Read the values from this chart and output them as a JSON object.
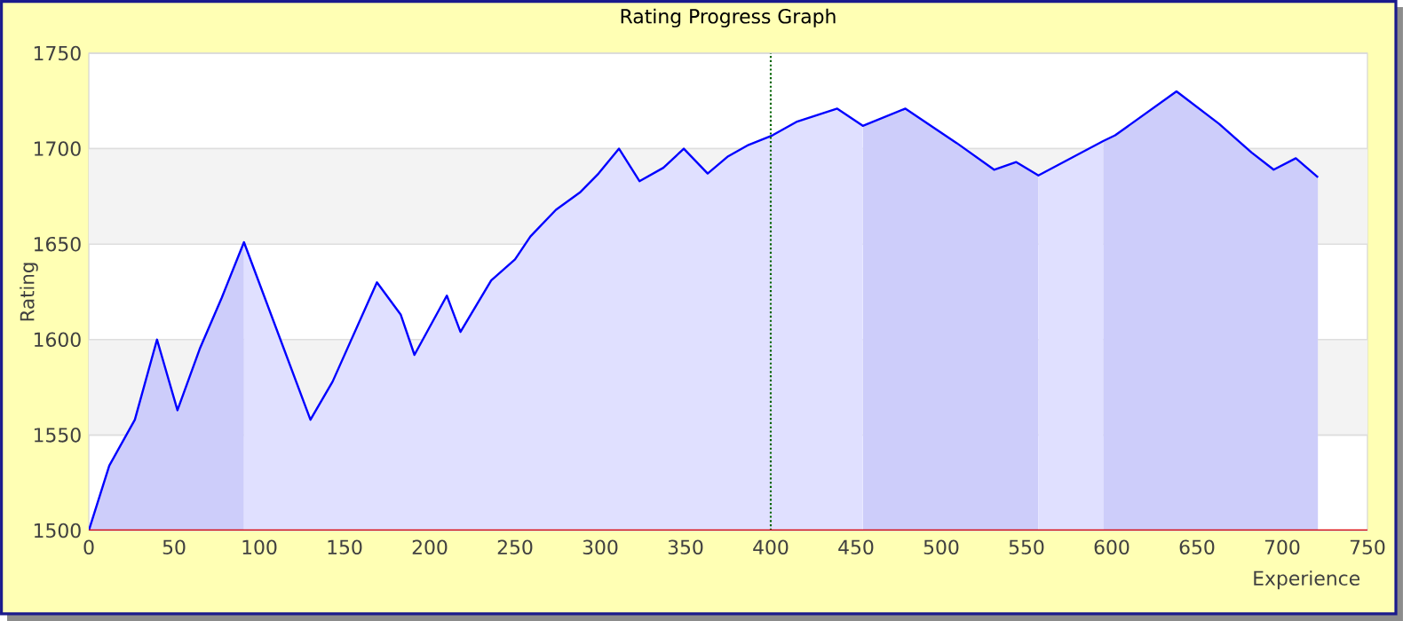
{
  "chart_data": {
    "type": "area",
    "title": "Rating Progress Graph",
    "xlabel": "Experience",
    "ylabel": "Rating",
    "x": [
      0,
      12,
      27,
      40,
      52,
      65,
      78,
      91,
      130,
      143,
      169,
      183,
      191,
      210,
      218,
      236,
      250,
      259,
      274,
      288,
      299,
      311,
      323,
      337,
      349,
      363,
      375,
      387,
      401,
      415,
      439,
      454,
      479,
      509,
      531,
      544,
      557,
      595,
      602,
      638,
      663,
      682,
      695,
      708,
      721
    ],
    "series": [
      {
        "color": "#0000ff",
        "values": [
          1500,
          1534,
          1558,
          1600,
          1563,
          1595,
          1622,
          1651,
          1558,
          1578,
          1630,
          1613,
          1592,
          1623,
          1604,
          1631,
          1642,
          1654,
          1668,
          1677,
          1687,
          1700,
          1683,
          1690,
          1700,
          1687,
          1696,
          1702,
          1707,
          1714,
          1721,
          1712,
          1721,
          1703,
          1689,
          1693,
          1686,
          1704,
          1707,
          1730,
          1713,
          1698,
          1689,
          1695,
          1685
        ]
      }
    ],
    "xlim": [
      0,
      750
    ],
    "ylim": [
      1500,
      1750
    ],
    "xticks": [
      0,
      50,
      100,
      150,
      200,
      250,
      300,
      350,
      400,
      450,
      500,
      550,
      600,
      650,
      700,
      750
    ],
    "yticks": [
      1500,
      1550,
      1600,
      1650,
      1700,
      1750
    ],
    "grid": "y",
    "ref_lines": [
      {
        "axis": "x",
        "value": 400,
        "color": "#006400",
        "line_style": "dotted"
      }
    ],
    "bands": [
      {
        "axis": "y",
        "from": 1550,
        "to": 1600,
        "color": "#f3f3f3"
      },
      {
        "axis": "y",
        "from": 1650,
        "to": 1700,
        "color": "#f3f3f3"
      },
      {
        "axis": "x",
        "from": 0,
        "to": 91,
        "color": "#cdcdfa"
      },
      {
        "axis": "x",
        "from": 454,
        "to": 557,
        "color": "#cdcdfa"
      },
      {
        "axis": "x",
        "from": 595,
        "to": 721,
        "color": "#cdcdfa"
      }
    ]
  }
}
